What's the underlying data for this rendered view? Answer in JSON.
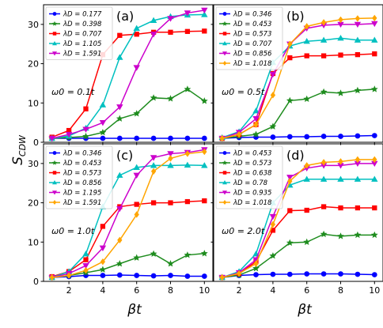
{
  "figure": {
    "ylabel": "S",
    "ylabel_sub": "CDW",
    "xlabel": "βt"
  },
  "chart_data": [
    {
      "type": "line",
      "panel": "(a)",
      "annotation": "ω0 = 0.1t",
      "x": [
        1,
        2,
        3,
        4,
        5,
        6,
        7,
        8,
        9,
        10
      ],
      "xlim": [
        0.5,
        10.5
      ],
      "ylim": [
        0,
        35
      ],
      "xticks": [
        2,
        4,
        6,
        8,
        10
      ],
      "yticks": [
        0,
        10,
        20,
        30
      ],
      "series": [
        {
          "name": "λD = 0.177",
          "color": "#0000ff",
          "marker": "circle",
          "values": [
            1,
            1,
            1,
            1,
            1,
            1,
            1,
            1,
            1,
            1
          ]
        },
        {
          "name": "λD = 0.398",
          "color": "#1e8c1e",
          "marker": "star",
          "values": [
            1,
            1.2,
            1.5,
            2.5,
            6,
            7.3,
            11.3,
            11.1,
            13.5,
            10.5
          ]
        },
        {
          "name": "λD = 0.707",
          "color": "#ff0000",
          "marker": "square",
          "values": [
            1.3,
            3,
            8.5,
            22.3,
            27.2,
            27.5,
            28,
            28,
            28.2,
            28.3
          ]
        },
        {
          "name": "λD = 1.105",
          "color": "#00c0c0",
          "marker": "triangle-up",
          "values": [
            1,
            1.6,
            3.6,
            9.5,
            21.6,
            29,
            31,
            32,
            32.4,
            32.5
          ]
        },
        {
          "name": "λD = 1.591",
          "color": "#cc00cc",
          "marker": "triangle-down",
          "values": [
            1,
            2,
            3.3,
            5,
            9,
            19,
            27.5,
            31.5,
            32.9,
            33.6
          ]
        }
      ]
    },
    {
      "type": "line",
      "panel": "(b)",
      "annotation": "ω0 = 0.5t",
      "x": [
        1,
        2,
        3,
        4,
        5,
        6,
        7,
        8,
        9,
        10
      ],
      "xlim": [
        0.5,
        10.5
      ],
      "ylim": [
        0,
        35
      ],
      "xticks": [
        2,
        4,
        6,
        8,
        10
      ],
      "yticks": [
        0,
        10,
        20,
        30
      ],
      "series": [
        {
          "name": "λD = 0.346",
          "color": "#0000ff",
          "marker": "circle",
          "values": [
            1,
            1.2,
            1.3,
            1.3,
            1.4,
            1.4,
            1.5,
            1.5,
            1.6,
            1.7
          ]
        },
        {
          "name": "λD = 0.453",
          "color": "#1e8c1e",
          "marker": "star",
          "values": [
            1,
            1.5,
            2,
            4,
            10.6,
            11,
            12.8,
            12.5,
            13.2,
            13.5
          ]
        },
        {
          "name": "λD = 0.573",
          "color": "#ff0000",
          "marker": "square",
          "values": [
            1,
            2,
            4.5,
            17.5,
            21.5,
            22,
            22,
            22.2,
            22.3,
            22.5
          ]
        },
        {
          "name": "λD = 0.707",
          "color": "#00c0c0",
          "marker": "triangle-up",
          "values": [
            1.2,
            2.7,
            8,
            20.3,
            24.5,
            25.7,
            26,
            26.5,
            26,
            26
          ]
        },
        {
          "name": "λD = 0.856",
          "color": "#cc00cc",
          "marker": "triangle-down",
          "values": [
            1,
            2.5,
            6,
            17.3,
            25,
            29,
            29.8,
            30,
            30,
            30.2
          ]
        },
        {
          "name": "λD = 1.018",
          "color": "#ffa500",
          "marker": "diamond",
          "values": [
            1,
            2,
            4.5,
            12,
            25,
            29.5,
            30.5,
            31.2,
            31.5,
            31.6
          ]
        }
      ]
    },
    {
      "type": "line",
      "panel": "(c)",
      "annotation": "ω0 = 1.0t",
      "x": [
        1,
        2,
        3,
        4,
        5,
        6,
        7,
        8,
        9,
        10
      ],
      "xlim": [
        0.5,
        10.5
      ],
      "ylim": [
        0,
        35
      ],
      "xticks": [
        2,
        4,
        6,
        8,
        10
      ],
      "yticks": [
        0,
        10,
        20,
        30
      ],
      "series": [
        {
          "name": "λD = 0.346",
          "color": "#0000ff",
          "marker": "circle",
          "values": [
            1,
            1.2,
            1.5,
            1.5,
            1.6,
            1.5,
            1.4,
            1.5,
            1.3,
            1.3
          ]
        },
        {
          "name": "λD = 0.453",
          "color": "#1e8c1e",
          "marker": "star",
          "values": [
            1,
            1.5,
            2.2,
            3,
            4.5,
            6,
            7,
            4.5,
            6.7,
            7.1
          ]
        },
        {
          "name": "λD = 0.573",
          "color": "#ff0000",
          "marker": "square",
          "values": [
            1.2,
            2.5,
            5.5,
            14,
            19,
            19.6,
            20,
            20,
            20.3,
            20.5
          ]
        },
        {
          "name": "λD = 0.856",
          "color": "#00c0c0",
          "marker": "triangle-up",
          "values": [
            1,
            2.5,
            7,
            19,
            27,
            29,
            29.5,
            29.5,
            29.6,
            29.5
          ]
        },
        {
          "name": "λD = 1.195",
          "color": "#cc00cc",
          "marker": "triangle-down",
          "values": [
            1,
            2,
            4,
            8.5,
            18.5,
            27,
            31.5,
            32.5,
            32.8,
            33.5
          ]
        },
        {
          "name": "λD = 1.591",
          "color": "#ffa500",
          "marker": "diamond",
          "values": [
            1,
            1.5,
            2.8,
            5,
            10.5,
            17,
            28,
            31.3,
            32.5,
            33
          ]
        }
      ]
    },
    {
      "type": "line",
      "panel": "(d)",
      "annotation": "ω0 = 2.0t",
      "x": [
        1,
        2,
        3,
        4,
        5,
        6,
        7,
        8,
        9,
        10
      ],
      "xlim": [
        0.5,
        10.5
      ],
      "ylim": [
        0,
        35
      ],
      "xticks": [
        2,
        4,
        6,
        8,
        10
      ],
      "yticks": [
        0,
        10,
        20,
        30
      ],
      "series": [
        {
          "name": "λD = 0.453",
          "color": "#0000ff",
          "marker": "circle",
          "values": [
            1,
            1.5,
            1.7,
            1.8,
            1.8,
            1.9,
            1.9,
            1.9,
            1.8,
            1.7
          ]
        },
        {
          "name": "λD = 0.573",
          "color": "#1e8c1e",
          "marker": "star",
          "values": [
            1,
            1.6,
            3.3,
            6.5,
            9.8,
            10,
            12,
            11.5,
            11.8,
            11.8
          ]
        },
        {
          "name": "λD = 0.638",
          "color": "#ff0000",
          "marker": "square",
          "values": [
            1,
            2,
            5,
            13,
            18,
            18.1,
            19,
            18.7,
            18.7,
            18.7
          ]
        },
        {
          "name": "λD = 0.78",
          "color": "#00c0c0",
          "marker": "triangle-up",
          "values": [
            1,
            2.5,
            7,
            20,
            24.5,
            26,
            26,
            26,
            26,
            26
          ]
        },
        {
          "name": "λD = 0.935",
          "color": "#cc00cc",
          "marker": "triangle-down",
          "values": [
            1,
            2.2,
            5.5,
            16.5,
            26.5,
            28.8,
            29.5,
            29.5,
            30,
            30
          ]
        },
        {
          "name": "λD = 1.018",
          "color": "#ffa500",
          "marker": "diamond",
          "values": [
            1,
            2,
            4.5,
            14.5,
            25.5,
            29.5,
            30.3,
            30.5,
            31,
            31
          ]
        }
      ]
    }
  ]
}
